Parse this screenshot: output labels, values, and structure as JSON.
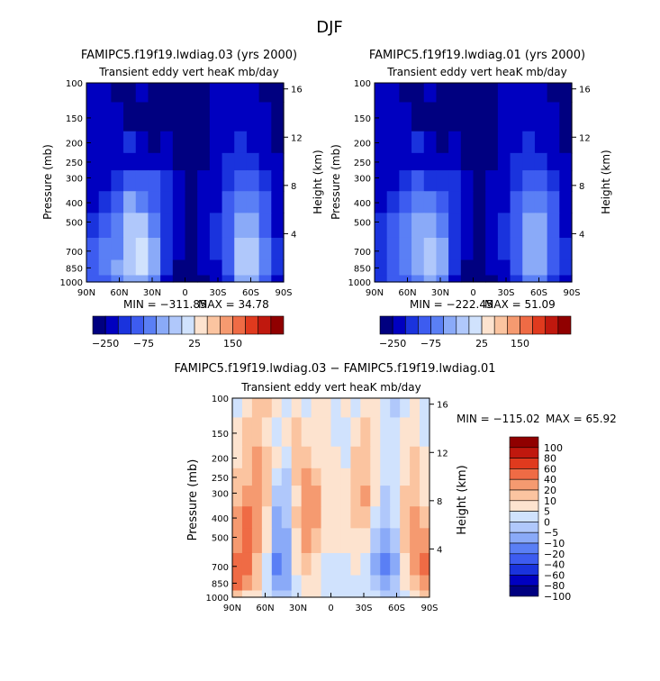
{
  "figure": {
    "title": "DJF"
  },
  "palette": {
    "abs": [
      "#000080",
      "#0000c0",
      "#1a33dd",
      "#3d5cf0",
      "#5a7ff5",
      "#8aaaf8",
      "#b0c8fb",
      "#d0e2fd",
      "#fde3cf",
      "#fbc4a0",
      "#f59a70",
      "#ef6b45",
      "#e03a1e",
      "#c0180e",
      "#900000"
    ],
    "diff": [
      "#000080",
      "#0000c0",
      "#1a33dd",
      "#3d5cf0",
      "#5a7ff5",
      "#8aaaf8",
      "#b0c8fb",
      "#d0e2fd",
      "#fde3cf",
      "#fbc4a0",
      "#f59a70",
      "#ef6b45",
      "#e03a1e",
      "#c0180e",
      "#900000"
    ]
  },
  "chart_data": [
    {
      "type": "heatmap",
      "title": "FAMIPC5.f19f19.lwdiag.03 (yrs 2000)",
      "subtitle": "Transient eddy vert heaK mb/day",
      "ylabel": "Pressure (mb)",
      "ylabel_right": "Height (km)",
      "x_ticks": [
        "90N",
        "60N",
        "30N",
        "0",
        "30S",
        "60S",
        "90S"
      ],
      "y_ticks": [
        "100",
        "150",
        "200",
        "250",
        "300",
        "400",
        "500",
        "700",
        "850",
        "1000"
      ],
      "y_ticks_right": [
        "16",
        "12",
        "8",
        "4"
      ],
      "min_text": "MIN = −311.85",
      "max_text": "MAX =  34.78",
      "colorbar_labels": [
        "−250",
        "−75",
        "25",
        "150"
      ],
      "field": [
        [
          1,
          1,
          0,
          0,
          1,
          0,
          0,
          0,
          0,
          0,
          1,
          1,
          1,
          1,
          0,
          0
        ],
        [
          1,
          1,
          1,
          0,
          0,
          0,
          0,
          0,
          0,
          0,
          1,
          1,
          1,
          1,
          1,
          0
        ],
        [
          1,
          1,
          1,
          2,
          1,
          0,
          1,
          0,
          0,
          0,
          1,
          1,
          2,
          1,
          1,
          0
        ],
        [
          1,
          1,
          1,
          1,
          1,
          1,
          1,
          0,
          0,
          0,
          1,
          2,
          2,
          2,
          1,
          1
        ],
        [
          1,
          1,
          2,
          3,
          3,
          3,
          2,
          1,
          0,
          1,
          1,
          2,
          3,
          3,
          2,
          1
        ],
        [
          1,
          2,
          3,
          5,
          4,
          3,
          2,
          1,
          0,
          1,
          1,
          3,
          4,
          4,
          3,
          1
        ],
        [
          2,
          3,
          4,
          6,
          6,
          4,
          2,
          1,
          0,
          1,
          2,
          3,
          5,
          5,
          3,
          1
        ],
        [
          3,
          4,
          4,
          6,
          7,
          5,
          2,
          1,
          0,
          1,
          2,
          3,
          6,
          6,
          4,
          2
        ],
        [
          3,
          4,
          5,
          6,
          7,
          5,
          2,
          0,
          0,
          1,
          1,
          3,
          6,
          6,
          4,
          2
        ],
        [
          3,
          3,
          4,
          5,
          5,
          4,
          1,
          0,
          0,
          0,
          1,
          2,
          5,
          5,
          3,
          1
        ]
      ]
    },
    {
      "type": "heatmap",
      "title": "FAMIPC5.f19f19.lwdiag.01 (yrs 2000)",
      "subtitle": "Transient eddy vert heaK mb/day",
      "ylabel": "Pressure (mb)",
      "ylabel_right": "Height (km)",
      "x_ticks": [
        "90N",
        "60N",
        "30N",
        "0",
        "30S",
        "60S",
        "90S"
      ],
      "y_ticks": [
        "100",
        "150",
        "200",
        "250",
        "300",
        "400",
        "500",
        "700",
        "850",
        "1000"
      ],
      "y_ticks_right": [
        "16",
        "12",
        "8",
        "4"
      ],
      "min_text": "MIN = −222.45",
      "max_text": "MAX =  51.09",
      "colorbar_labels": [
        "−250",
        "−75",
        "25",
        "150"
      ],
      "field": [
        [
          1,
          1,
          0,
          0,
          1,
          0,
          0,
          0,
          0,
          0,
          1,
          1,
          1,
          1,
          0,
          0
        ],
        [
          1,
          1,
          1,
          0,
          0,
          0,
          0,
          0,
          0,
          0,
          1,
          1,
          1,
          1,
          1,
          0
        ],
        [
          1,
          1,
          1,
          2,
          1,
          0,
          1,
          0,
          0,
          0,
          1,
          1,
          2,
          1,
          1,
          0
        ],
        [
          1,
          1,
          1,
          1,
          1,
          1,
          1,
          0,
          0,
          0,
          1,
          2,
          2,
          2,
          1,
          1
        ],
        [
          1,
          1,
          2,
          3,
          2,
          2,
          2,
          1,
          0,
          1,
          1,
          2,
          3,
          3,
          2,
          1
        ],
        [
          1,
          2,
          3,
          4,
          4,
          3,
          2,
          1,
          0,
          1,
          1,
          3,
          4,
          4,
          3,
          1
        ],
        [
          2,
          3,
          4,
          5,
          5,
          4,
          2,
          1,
          0,
          1,
          2,
          3,
          5,
          5,
          3,
          1
        ],
        [
          2,
          3,
          4,
          5,
          6,
          5,
          2,
          1,
          0,
          1,
          2,
          3,
          5,
          5,
          3,
          2
        ],
        [
          2,
          3,
          4,
          5,
          6,
          5,
          2,
          0,
          0,
          1,
          1,
          3,
          5,
          5,
          3,
          2
        ],
        [
          2,
          3,
          3,
          4,
          5,
          4,
          1,
          0,
          0,
          0,
          1,
          2,
          4,
          4,
          2,
          1
        ]
      ]
    },
    {
      "type": "heatmap",
      "title": "FAMIPC5.f19f19.lwdiag.03 − FAMIPC5.f19f19.lwdiag.01",
      "subtitle": "Transient eddy vert heaK mb/day",
      "ylabel": "Pressure (mb)",
      "ylabel_right": "Height (km)",
      "x_ticks": [
        "90N",
        "60N",
        "30N",
        "0",
        "30S",
        "60S",
        "90S"
      ],
      "y_ticks": [
        "100",
        "150",
        "200",
        "250",
        "300",
        "400",
        "500",
        "700",
        "850",
        "1000"
      ],
      "y_ticks_right": [
        "16",
        "12",
        "8",
        "4"
      ],
      "min_text": "MIN = −115.02",
      "max_text": "MAX =  65.92",
      "colorbar_labels": [
        "100",
        "80",
        "60",
        "40",
        "20",
        "10",
        "5",
        "0",
        "−5",
        "−10",
        "−20",
        "−40",
        "−60",
        "−80",
        "−100"
      ],
      "field": [
        [
          7,
          8,
          9,
          9,
          8,
          7,
          8,
          7,
          8,
          8,
          7,
          8,
          7,
          8,
          8,
          7,
          6,
          7,
          8,
          7
        ],
        [
          8,
          9,
          9,
          8,
          7,
          8,
          9,
          8,
          8,
          8,
          7,
          7,
          8,
          9,
          8,
          7,
          7,
          8,
          8,
          7
        ],
        [
          8,
          9,
          10,
          9,
          8,
          7,
          9,
          9,
          8,
          8,
          8,
          7,
          9,
          9,
          8,
          7,
          7,
          8,
          9,
          8
        ],
        [
          9,
          9,
          10,
          9,
          7,
          6,
          9,
          10,
          9,
          8,
          8,
          8,
          9,
          9,
          8,
          7,
          7,
          8,
          9,
          8
        ],
        [
          9,
          10,
          10,
          9,
          6,
          6,
          8,
          10,
          10,
          8,
          8,
          8,
          9,
          10,
          8,
          6,
          7,
          9,
          9,
          8
        ],
        [
          10,
          11,
          10,
          8,
          5,
          6,
          9,
          10,
          10,
          8,
          8,
          8,
          9,
          9,
          7,
          6,
          7,
          9,
          10,
          9
        ],
        [
          10,
          11,
          10,
          8,
          5,
          5,
          8,
          10,
          9,
          8,
          8,
          8,
          8,
          8,
          6,
          5,
          6,
          9,
          10,
          10
        ],
        [
          11,
          11,
          9,
          7,
          4,
          5,
          8,
          9,
          8,
          7,
          7,
          7,
          8,
          7,
          5,
          4,
          5,
          8,
          10,
          11
        ],
        [
          11,
          10,
          9,
          7,
          5,
          5,
          7,
          8,
          8,
          7,
          7,
          7,
          7,
          7,
          6,
          5,
          6,
          8,
          9,
          10
        ],
        [
          9,
          8,
          8,
          7,
          6,
          6,
          7,
          8,
          8,
          7,
          7,
          7,
          7,
          7,
          7,
          6,
          6,
          7,
          8,
          9
        ]
      ]
    }
  ]
}
